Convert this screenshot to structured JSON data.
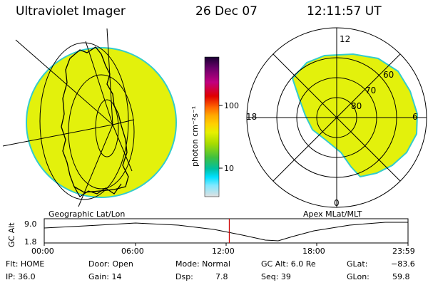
{
  "header": {
    "title": "Ultraviolet Imager",
    "date": "26 Dec 07",
    "time": "12:11:57 UT"
  },
  "colors": {
    "image_fill": "#e3f10c",
    "limb": "#33cccc",
    "colorbar": [
      "#1a0033",
      "#6a006a",
      "#c00080",
      "#e00000",
      "#ff6600",
      "#ffaa00",
      "#ffd000",
      "#e6f000",
      "#a8dc00",
      "#40c040",
      "#00c0a0",
      "#00e0ff",
      "#80e8ff",
      "#e0e0e0"
    ]
  },
  "colorbar": {
    "ticks": [
      "100",
      "10"
    ],
    "unit_label": "photon cm⁻²s⁻¹"
  },
  "left_panel": {
    "caption": "Geographic Lat/Lon"
  },
  "right_panel": {
    "caption": "Apex MLat/MLT",
    "mlt_labels": {
      "top": "12",
      "left": "18",
      "right": "6",
      "bottom": "0"
    },
    "mlat_labels": [
      "60",
      "70",
      "80"
    ]
  },
  "altitude_plot": {
    "axis_label": "GC Alt",
    "y_ticks": [
      "9.0",
      "1.8"
    ],
    "x_ticks": [
      "00:00",
      "06:00",
      "12:00",
      "18:00",
      "23:59"
    ],
    "marker_color": "#cc0000",
    "marker_time_hours": 12.2
  },
  "status": {
    "flt": "Flt: HOME",
    "ip": "IP: 36.0",
    "door": "Door: Open",
    "gain": "Gain: 14",
    "mode": "Mode: Normal",
    "dsp": "Dsp:",
    "dsp_value": "7.8",
    "gcalt": "GC Alt: 6.0 Re",
    "seq": "Seq: 39",
    "glat": "GLat:",
    "glat_value": "−83.6",
    "glon": "GLon:",
    "glon_value": "59.8"
  }
}
